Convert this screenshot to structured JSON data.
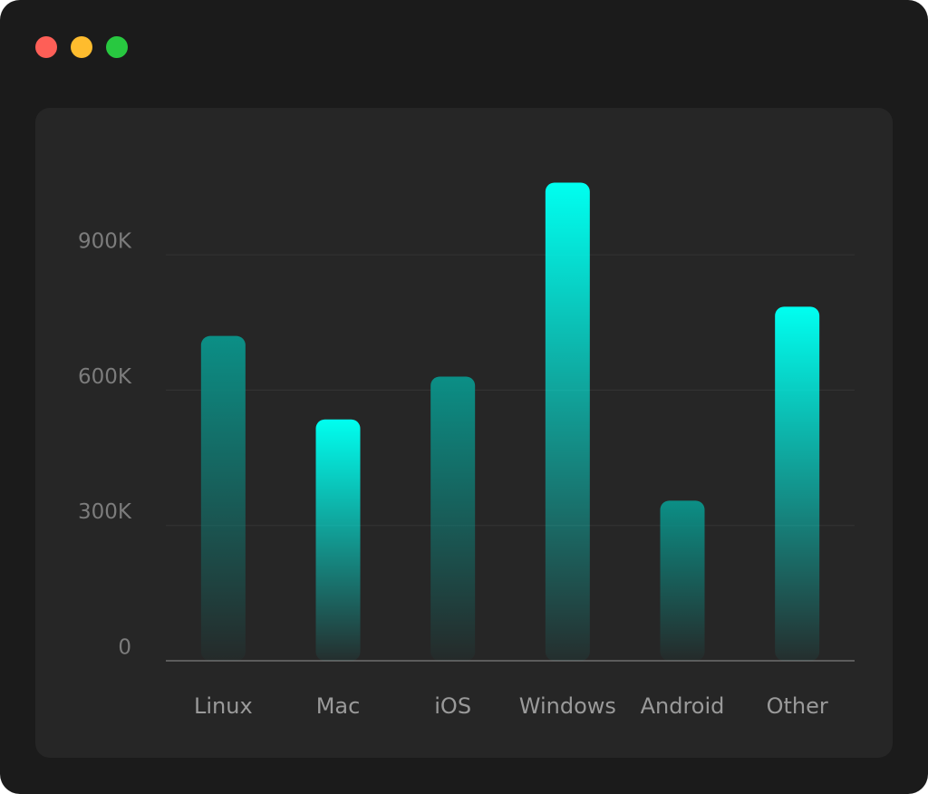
{
  "chart_data": {
    "type": "bar",
    "categories": [
      "Linux",
      "Mac",
      "iOS",
      "Windows",
      "Android",
      "Other"
    ],
    "values": [
      720000,
      535000,
      630000,
      1060000,
      355000,
      785000
    ],
    "colors": [
      "#0b8f86",
      "#00fff0",
      "#0b8f86",
      "#00fff0",
      "#0b8f86",
      "#00fff0"
    ],
    "ylim": [
      0,
      1200000
    ],
    "yticks": [
      0,
      {
        "value": 300000,
        "label": "300K"
      },
      {
        "value": 600000,
        "label": "600K"
      },
      {
        "value": 900000,
        "label": "900K"
      }
    ],
    "grid": true
  }
}
